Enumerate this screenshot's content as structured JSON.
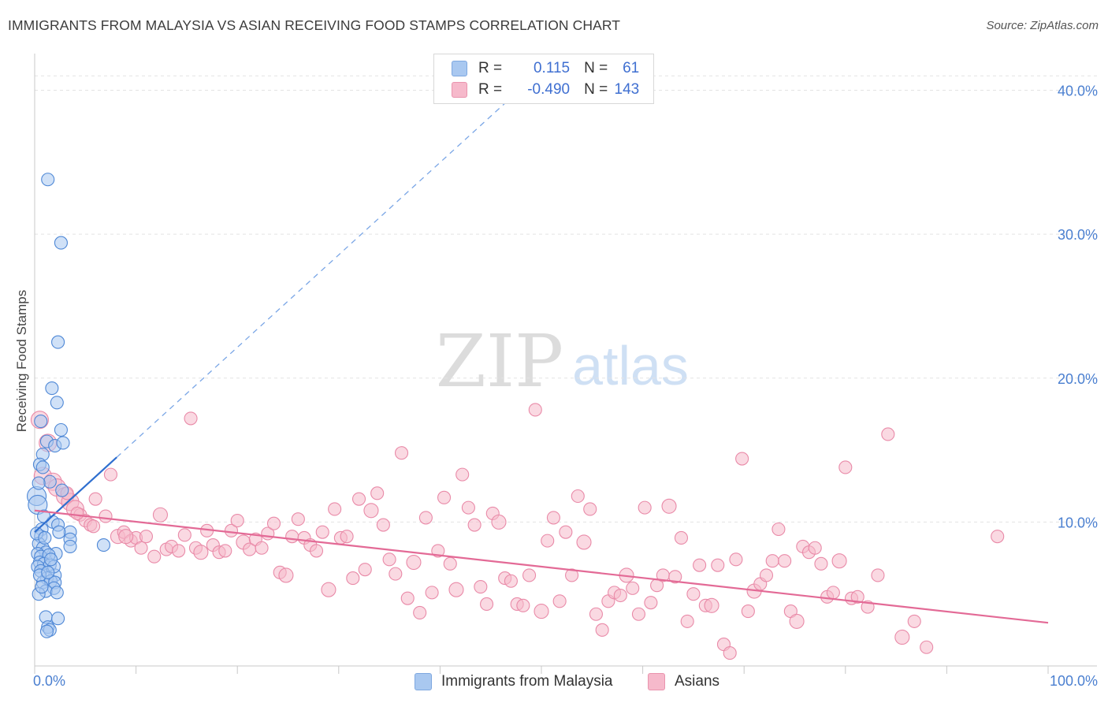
{
  "header": {
    "title": "IMMIGRANTS FROM MALAYSIA VS ASIAN RECEIVING FOOD STAMPS CORRELATION CHART",
    "source": "Source: ZipAtlas.com"
  },
  "watermark": {
    "zip": "ZIP",
    "atlas": "atlas"
  },
  "legend": {
    "rows": [
      {
        "r_label": "R =",
        "r_value": "0.115",
        "n_label": "N =",
        "n_value": "61",
        "color": "#a9c8f0"
      },
      {
        "r_label": "R =",
        "r_value": "-0.490",
        "n_label": "N =",
        "n_value": "143",
        "color": "#f6b9cb"
      }
    ]
  },
  "bottom_legend": [
    {
      "label": "Immigrants from Malaysia",
      "color": "#a9c8f0"
    },
    {
      "label": "Asians",
      "color": "#f6b9cb"
    }
  ],
  "chart_data": {
    "type": "scatter",
    "title": "IMMIGRANTS FROM MALAYSIA VS ASIAN RECEIVING FOOD STAMPS CORRELATION CHART",
    "ylabel": "Receiving Food Stamps",
    "xlabel": "",
    "xlim": [
      0,
      100
    ],
    "ylim": [
      0,
      42
    ],
    "x_tick_labels": [
      "0.0%",
      "100.0%"
    ],
    "y_ticks": [
      10,
      20,
      30,
      40
    ],
    "y_tick_labels": [
      "10.0%",
      "20.0%",
      "30.0%",
      "40.0%"
    ],
    "grid": true,
    "legend_position": "top-center",
    "series": [
      {
        "name": "Immigrants from Malaysia",
        "color": "#4a86d8",
        "fill": "#a9c8f0",
        "r": 0.115,
        "n": 61,
        "trend": {
          "x0": 0,
          "y0": 9.3,
          "x1": 8.1,
          "y1": 14.5,
          "dashed_to_x": 47.5,
          "dashed_to_y": 39.8
        },
        "points": [
          [
            1.3,
            33.8
          ],
          [
            2.6,
            29.4
          ],
          [
            2.3,
            22.5
          ],
          [
            1.7,
            19.3
          ],
          [
            2.2,
            18.3
          ],
          [
            2.6,
            16.4
          ],
          [
            0.6,
            17.0
          ],
          [
            1.2,
            15.6
          ],
          [
            2.0,
            15.3
          ],
          [
            2.8,
            15.5
          ],
          [
            0.8,
            14.7
          ],
          [
            0.5,
            14.0
          ],
          [
            0.8,
            13.8
          ],
          [
            1.5,
            12.8
          ],
          [
            2.7,
            12.2
          ],
          [
            0.2,
            11.8
          ],
          [
            0.3,
            11.2
          ],
          [
            1.8,
            10.0
          ],
          [
            2.3,
            9.8
          ],
          [
            0.7,
            9.5
          ],
          [
            3.5,
            9.3
          ],
          [
            0.6,
            9.0
          ],
          [
            3.5,
            8.8
          ],
          [
            0.4,
            8.5
          ],
          [
            3.5,
            8.3
          ],
          [
            6.8,
            8.4
          ],
          [
            0.8,
            8.2
          ],
          [
            1.1,
            7.9
          ],
          [
            2.1,
            7.8
          ],
          [
            0.3,
            7.8
          ],
          [
            0.6,
            7.6
          ],
          [
            1.4,
            7.7
          ],
          [
            0.5,
            7.2
          ],
          [
            0.9,
            7.1
          ],
          [
            1.5,
            7.0
          ],
          [
            0.3,
            6.9
          ],
          [
            0.6,
            6.6
          ],
          [
            2.0,
            6.3
          ],
          [
            1.2,
            6.1
          ],
          [
            0.8,
            5.8
          ],
          [
            1.6,
            5.9
          ],
          [
            2.0,
            5.8
          ],
          [
            1.9,
            5.4
          ],
          [
            1.1,
            5.2
          ],
          [
            2.2,
            5.1
          ],
          [
            0.4,
            5.0
          ],
          [
            1.1,
            3.4
          ],
          [
            2.3,
            3.3
          ],
          [
            1.3,
            2.7
          ],
          [
            1.5,
            2.5
          ],
          [
            1.2,
            2.4
          ],
          [
            0.2,
            9.2
          ],
          [
            0.9,
            10.4
          ],
          [
            1.9,
            6.9
          ],
          [
            0.4,
            12.7
          ],
          [
            2.4,
            9.3
          ],
          [
            0.5,
            6.3
          ],
          [
            1.0,
            8.9
          ],
          [
            1.6,
            7.4
          ],
          [
            0.7,
            5.5
          ],
          [
            1.3,
            6.5
          ]
        ]
      },
      {
        "name": "Asians",
        "color": "#e36a96",
        "fill": "#f6b9cb",
        "r": -0.49,
        "n": 143,
        "trend": {
          "x0": 0,
          "y0": 10.8,
          "x1": 100,
          "y1": 3.0
        },
        "points": [
          [
            0.5,
            17.1
          ],
          [
            1.3,
            15.5
          ],
          [
            0.8,
            13.2
          ],
          [
            1.8,
            12.8
          ],
          [
            2.2,
            12.4
          ],
          [
            3.0,
            11.8
          ],
          [
            3.5,
            11.4
          ],
          [
            4.0,
            10.9
          ],
          [
            4.5,
            10.5
          ],
          [
            5.0,
            10.1
          ],
          [
            5.5,
            9.8
          ],
          [
            6.0,
            11.6
          ],
          [
            7.0,
            10.4
          ],
          [
            7.5,
            13.3
          ],
          [
            8.2,
            9.0
          ],
          [
            8.8,
            9.3
          ],
          [
            9.5,
            8.7
          ],
          [
            10.0,
            8.9
          ],
          [
            10.5,
            8.2
          ],
          [
            11.0,
            9.0
          ],
          [
            11.8,
            7.6
          ],
          [
            12.4,
            10.5
          ],
          [
            13.0,
            8.1
          ],
          [
            13.5,
            8.3
          ],
          [
            14.2,
            8.0
          ],
          [
            14.8,
            9.1
          ],
          [
            15.4,
            17.2
          ],
          [
            15.9,
            8.2
          ],
          [
            16.4,
            7.9
          ],
          [
            17.0,
            9.4
          ],
          [
            17.6,
            8.4
          ],
          [
            18.2,
            7.9
          ],
          [
            18.8,
            8.0
          ],
          [
            19.4,
            9.4
          ],
          [
            20.0,
            10.1
          ],
          [
            20.6,
            8.6
          ],
          [
            21.2,
            8.1
          ],
          [
            21.8,
            8.8
          ],
          [
            22.4,
            8.2
          ],
          [
            23.0,
            9.2
          ],
          [
            23.6,
            9.9
          ],
          [
            24.2,
            6.5
          ],
          [
            24.8,
            6.3
          ],
          [
            25.4,
            9.0
          ],
          [
            26.0,
            10.2
          ],
          [
            26.6,
            8.9
          ],
          [
            27.2,
            8.4
          ],
          [
            27.8,
            8.0
          ],
          [
            28.4,
            9.3
          ],
          [
            29.0,
            5.3
          ],
          [
            29.6,
            10.9
          ],
          [
            30.2,
            8.9
          ],
          [
            30.8,
            9.0
          ],
          [
            31.4,
            6.1
          ],
          [
            32.0,
            11.6
          ],
          [
            32.6,
            6.7
          ],
          [
            33.2,
            10.8
          ],
          [
            33.8,
            12.0
          ],
          [
            34.4,
            9.8
          ],
          [
            35.0,
            7.4
          ],
          [
            35.6,
            6.4
          ],
          [
            36.2,
            14.8
          ],
          [
            36.8,
            4.7
          ],
          [
            37.4,
            7.2
          ],
          [
            38.0,
            3.7
          ],
          [
            38.6,
            10.3
          ],
          [
            39.2,
            5.1
          ],
          [
            39.8,
            8.0
          ],
          [
            40.4,
            11.7
          ],
          [
            41.0,
            7.1
          ],
          [
            41.6,
            5.3
          ],
          [
            42.2,
            13.3
          ],
          [
            42.8,
            11.0
          ],
          [
            43.4,
            9.8
          ],
          [
            44.0,
            5.5
          ],
          [
            44.6,
            4.3
          ],
          [
            45.2,
            10.6
          ],
          [
            45.8,
            10.0
          ],
          [
            46.4,
            6.1
          ],
          [
            47.0,
            5.9
          ],
          [
            47.6,
            4.3
          ],
          [
            48.2,
            4.2
          ],
          [
            48.8,
            6.3
          ],
          [
            49.4,
            17.8
          ],
          [
            50.0,
            3.8
          ],
          [
            50.6,
            8.7
          ],
          [
            51.2,
            10.3
          ],
          [
            51.8,
            4.5
          ],
          [
            52.4,
            9.3
          ],
          [
            53.0,
            6.3
          ],
          [
            53.6,
            11.8
          ],
          [
            54.2,
            8.6
          ],
          [
            54.8,
            10.9
          ],
          [
            55.4,
            3.6
          ],
          [
            56.0,
            2.5
          ],
          [
            56.6,
            4.5
          ],
          [
            57.2,
            5.1
          ],
          [
            57.8,
            4.9
          ],
          [
            58.4,
            6.3
          ],
          [
            59.0,
            5.4
          ],
          [
            59.6,
            3.6
          ],
          [
            60.2,
            11.0
          ],
          [
            60.8,
            4.4
          ],
          [
            61.4,
            5.6
          ],
          [
            62.0,
            6.3
          ],
          [
            62.6,
            11.1
          ],
          [
            63.2,
            6.2
          ],
          [
            63.8,
            8.9
          ],
          [
            64.4,
            3.1
          ],
          [
            65.0,
            5.0
          ],
          [
            65.6,
            7.0
          ],
          [
            66.2,
            4.2
          ],
          [
            66.8,
            4.2
          ],
          [
            67.4,
            7.0
          ],
          [
            68.0,
            1.5
          ],
          [
            68.6,
            0.9
          ],
          [
            69.2,
            7.4
          ],
          [
            69.8,
            14.4
          ],
          [
            70.4,
            3.8
          ],
          [
            71.0,
            5.2
          ],
          [
            71.6,
            5.7
          ],
          [
            72.2,
            6.3
          ],
          [
            72.8,
            7.3
          ],
          [
            73.4,
            9.5
          ],
          [
            74.0,
            7.3
          ],
          [
            74.6,
            3.8
          ],
          [
            75.2,
            3.1
          ],
          [
            75.8,
            8.3
          ],
          [
            76.4,
            7.9
          ],
          [
            77.0,
            8.2
          ],
          [
            77.6,
            7.1
          ],
          [
            78.2,
            4.8
          ],
          [
            78.8,
            5.1
          ],
          [
            79.4,
            7.3
          ],
          [
            80.0,
            13.8
          ],
          [
            80.6,
            4.7
          ],
          [
            81.2,
            4.8
          ],
          [
            82.2,
            4.1
          ],
          [
            83.2,
            6.3
          ],
          [
            84.2,
            16.1
          ],
          [
            85.6,
            2.0
          ],
          [
            86.8,
            3.1
          ],
          [
            88.0,
            1.3
          ],
          [
            95.0,
            9.0
          ],
          [
            3.2,
            12.0
          ],
          [
            5.8,
            9.7
          ],
          [
            4.2,
            10.6
          ],
          [
            9.0,
            9.0
          ]
        ]
      }
    ]
  }
}
